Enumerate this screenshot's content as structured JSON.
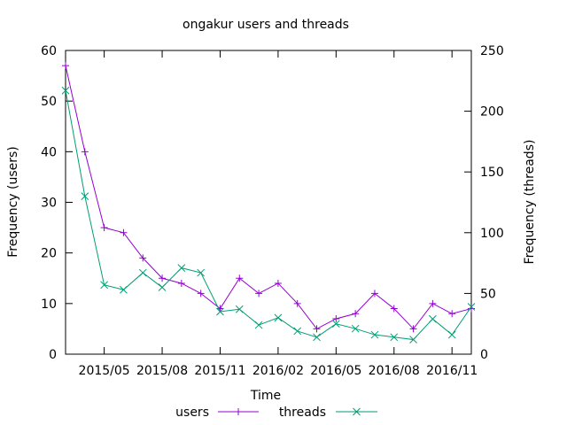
{
  "chart_data": {
    "type": "line",
    "title": "ongakur users and threads",
    "xlabel": "Time",
    "ylabel": "Frequency (users)",
    "y2label": "Frequency (threads)",
    "x_ticks": [
      "2015/05",
      "2015/08",
      "2015/11",
      "2016/02",
      "2016/05",
      "2016/08",
      "2016/11"
    ],
    "x": [
      "2015/03",
      "2015/04",
      "2015/05",
      "2015/06",
      "2015/07",
      "2015/08",
      "2015/09",
      "2015/10",
      "2015/11",
      "2015/12",
      "2016/01",
      "2016/02",
      "2016/03",
      "2016/04",
      "2016/05",
      "2016/06",
      "2016/07",
      "2016/08",
      "2016/09",
      "2016/10",
      "2016/11",
      "2016/12"
    ],
    "ylim": [
      0,
      60
    ],
    "y_ticks": [
      0,
      10,
      20,
      30,
      40,
      50,
      60
    ],
    "y2lim": [
      0,
      250
    ],
    "y2_ticks": [
      0,
      50,
      100,
      150,
      200,
      250
    ],
    "grid": false,
    "legend_position": "bottom",
    "series": [
      {
        "name": "users",
        "axis": "left",
        "color": "#9400d3",
        "marker": "+",
        "values": [
          57,
          40,
          25,
          24,
          19,
          15,
          14,
          12,
          9,
          15,
          12,
          14,
          10,
          5,
          7,
          8,
          12,
          9,
          5,
          10,
          8,
          9
        ]
      },
      {
        "name": "threads",
        "axis": "right",
        "color": "#009e73",
        "marker": "x",
        "values": [
          217,
          130,
          57,
          53,
          67,
          55,
          71,
          67,
          35,
          37,
          24,
          30,
          19,
          14,
          25,
          21,
          16,
          14,
          12,
          29,
          16,
          39
        ]
      }
    ]
  }
}
